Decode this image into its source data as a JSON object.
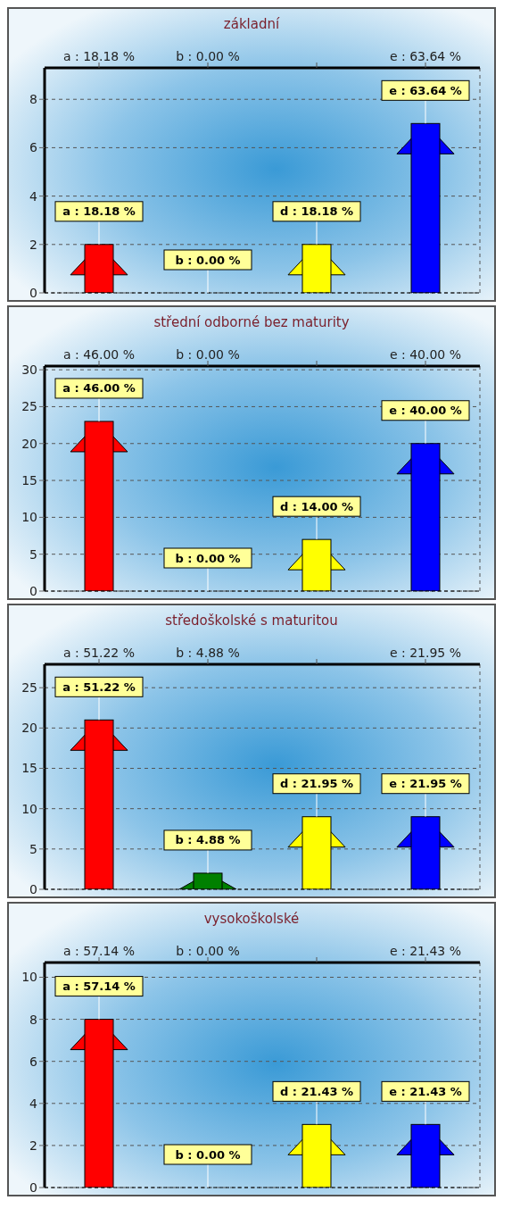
{
  "chart_data": [
    {
      "type": "bar",
      "title": "základní",
      "categories": [
        "a : 18.18 %",
        "b : 0.00 %",
        null,
        "e : 63.64 %"
      ],
      "values": [
        2,
        0,
        2,
        7
      ],
      "colors": [
        "#ff0000",
        "#008000",
        "#ffff00",
        "#0000ff"
      ],
      "annotations": [
        {
          "text": "a : 18.18 %",
          "x": "a : 18.18 %",
          "y": 2
        },
        {
          "text": "b : 0.00 %",
          "x": "b : 0.00 %",
          "y": 0
        },
        {
          "text": "d : 18.18 %",
          "y": 2
        },
        {
          "text": "e : 63.64 %",
          "x": "e : 63.64 %",
          "y": 7
        }
      ],
      "ylim": [
        0,
        9.3
      ],
      "yticks": [
        0,
        2,
        4,
        6,
        8
      ],
      "grid": true
    },
    {
      "type": "bar",
      "title": "střední odborné bez maturity",
      "categories": [
        "a : 46.00 %",
        "b : 0.00 %",
        null,
        "e : 40.00 %"
      ],
      "values": [
        23,
        0,
        7,
        20
      ],
      "colors": [
        "#ff0000",
        "#008000",
        "#ffff00",
        "#0000ff"
      ],
      "annotations": [
        {
          "text": "a : 46.00 %",
          "x": "a : 46.00 %",
          "y": 23
        },
        {
          "text": "b : 0.00 %",
          "x": "b : 0.00 %",
          "y": 0
        },
        {
          "text": "d : 14.00 %",
          "y": 7
        },
        {
          "text": "e : 40.00 %",
          "x": "e : 40.00 %",
          "y": 20
        }
      ],
      "ylim": [
        0,
        30.5
      ],
      "yticks": [
        0,
        5,
        10,
        15,
        20,
        25,
        30
      ],
      "grid": true
    },
    {
      "type": "bar",
      "title": "středoškolské s maturitou",
      "categories": [
        "a : 51.22 %",
        "b : 4.88 %",
        null,
        "e : 21.95 %"
      ],
      "values": [
        21,
        2,
        9,
        9
      ],
      "colors": [
        "#ff0000",
        "#008000",
        "#ffff00",
        "#0000ff"
      ],
      "annotations": [
        {
          "text": "a : 51.22 %",
          "x": "a : 51.22 %",
          "y": 21
        },
        {
          "text": "b : 4.88 %",
          "x": "b : 4.88 %",
          "y": 2
        },
        {
          "text": "d : 21.95 %",
          "y": 9
        },
        {
          "text": "e : 21.95 %",
          "x": "e : 21.95 %",
          "y": 9
        }
      ],
      "ylim": [
        0,
        27.9
      ],
      "yticks": [
        0,
        5,
        10,
        15,
        20,
        25
      ],
      "grid": true
    },
    {
      "type": "bar",
      "title": "vysokoškolské",
      "categories": [
        "a : 57.14 %",
        "b : 0.00 %",
        null,
        "e : 21.43 %"
      ],
      "values": [
        8,
        0,
        3,
        3
      ],
      "colors": [
        "#ff0000",
        "#008000",
        "#ffff00",
        "#0000ff"
      ],
      "annotations": [
        {
          "text": "a : 57.14 %",
          "x": "a : 57.14 %",
          "y": 8
        },
        {
          "text": "b : 0.00 %",
          "x": "b : 0.00 %",
          "y": 0
        },
        {
          "text": "d : 21.43 %",
          "y": 3
        },
        {
          "text": "e : 21.43 %",
          "x": "e : 21.43 %",
          "y": 3
        }
      ],
      "ylim": [
        0,
        10.7
      ],
      "yticks": [
        0,
        2,
        4,
        6,
        8,
        10
      ],
      "grid": true
    }
  ]
}
